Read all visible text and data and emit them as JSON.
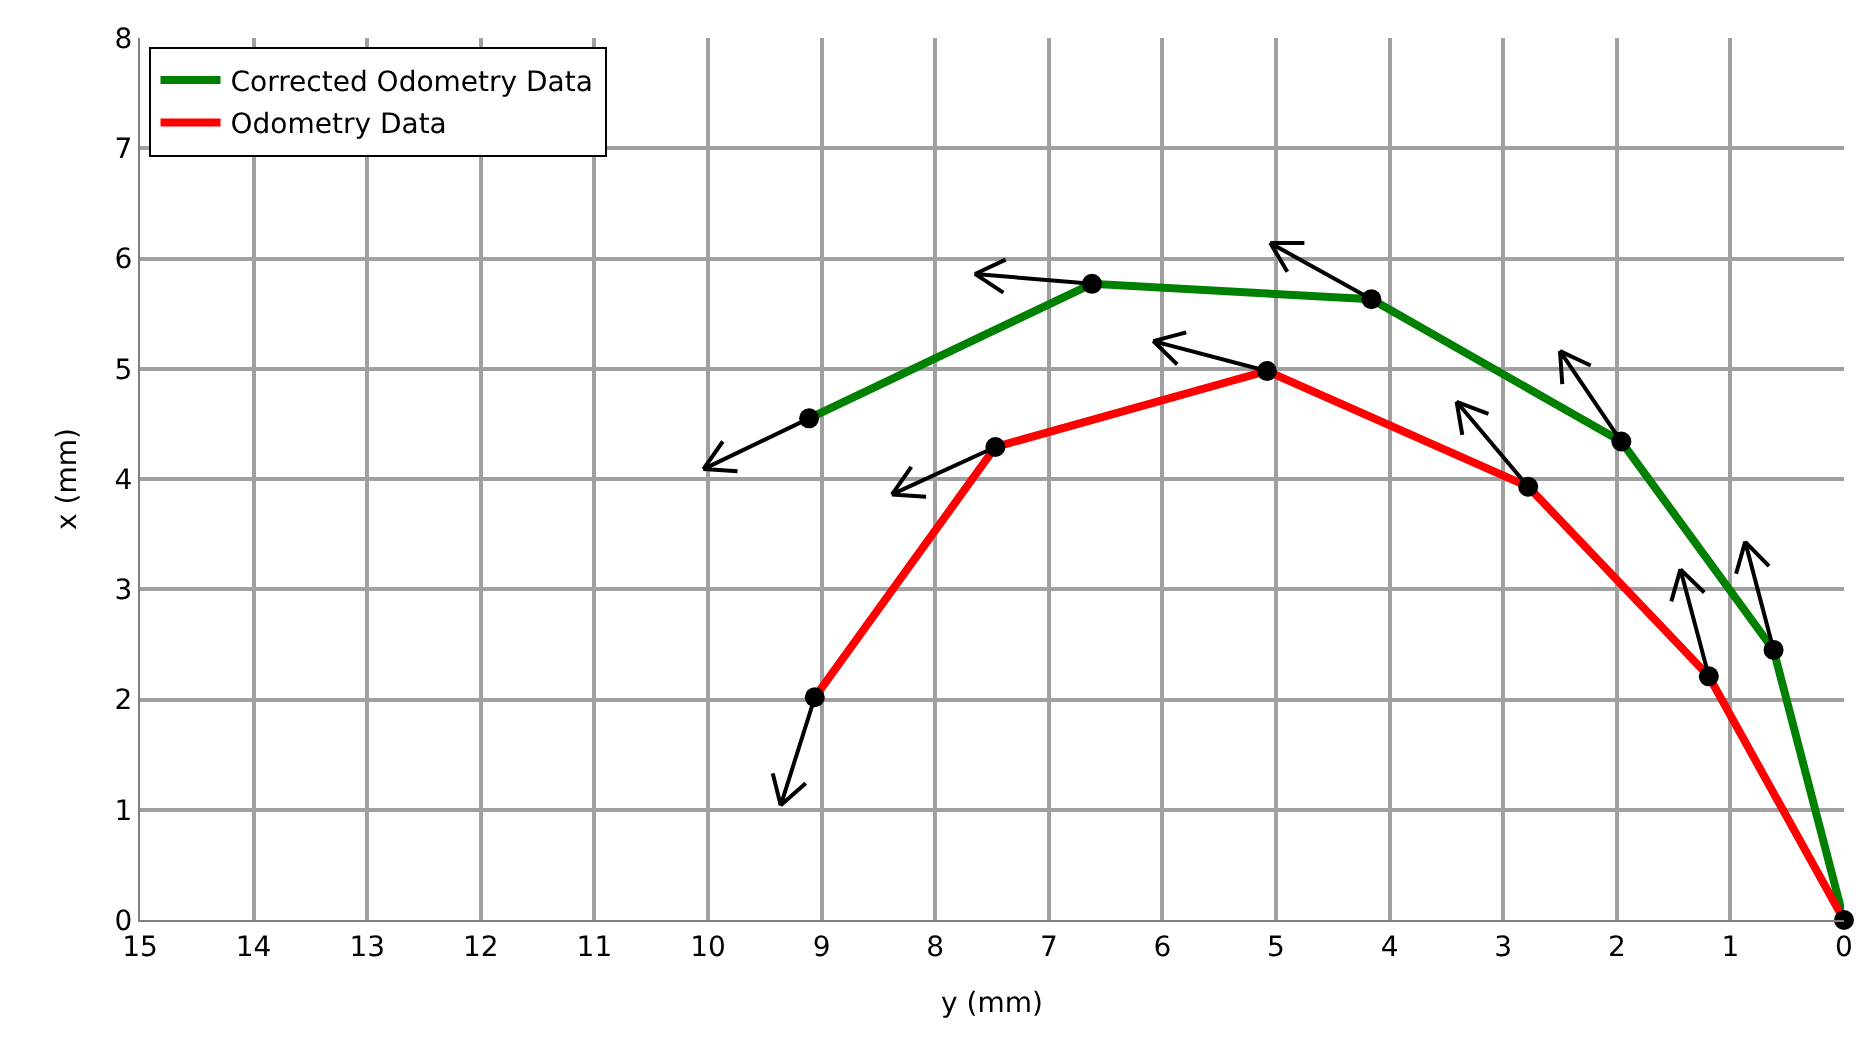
{
  "chart_data": {
    "type": "line",
    "xlabel": "y (mm)",
    "ylabel": "x (mm)",
    "xlim": [
      15,
      0
    ],
    "ylim": [
      0,
      8
    ],
    "xticks": [
      15,
      14,
      13,
      12,
      11,
      10,
      9,
      8,
      7,
      6,
      5,
      4,
      3,
      2,
      1,
      0
    ],
    "yticks": [
      0,
      1,
      2,
      3,
      4,
      5,
      6,
      7,
      8
    ],
    "grid": true,
    "legend": "top left",
    "line_style": "solid",
    "series": [
      {
        "name": "Corrected Odometry Data",
        "color": "#008000",
        "x": [
          0,
          0.62,
          1.96,
          4.16,
          6.62,
          9.11
        ],
        "values": [
          0,
          2.45,
          4.34,
          5.63,
          5.77,
          4.55
        ]
      },
      {
        "name": "Odometry Data",
        "color": "#ff0000",
        "x": [
          0,
          1.19,
          2.78,
          5.08,
          7.47,
          9.06
        ],
        "values": [
          0,
          2.21,
          3.93,
          4.98,
          4.29,
          2.02
        ]
      },
      {
        "type": "line",
        "color": "#000000",
        "x": [
          0.62,
          0.87,
          0.95,
          null,
          0.87,
          0.66,
          null,
          1.96,
          2.5,
          2.48,
          null,
          2.5,
          2.23,
          null,
          4.16,
          5.05,
          4.9,
          null,
          5.05,
          4.75,
          null,
          6.62,
          7.65,
          7.4,
          null,
          7.65,
          7.38,
          null,
          9.11,
          10.04,
          9.74,
          null,
          10.04,
          9.87,
          null,
          1.19,
          1.44,
          1.52,
          null,
          1.44,
          1.23,
          null,
          2.78,
          3.41,
          3.36,
          null,
          3.41,
          3.13,
          null,
          5.08,
          6.08,
          5.87,
          null,
          6.08,
          5.79,
          null,
          7.47,
          8.38,
          8.08,
          null,
          8.38,
          8.21,
          null,
          9.06,
          9.36,
          9.14,
          null,
          9.36,
          9.43
        ],
        "values": [
          2.45,
          3.43,
          3.14,
          null,
          3.43,
          3.21,
          null,
          4.34,
          5.16,
          4.86,
          null,
          5.16,
          5.03,
          null,
          5.63,
          6.14,
          5.88,
          null,
          6.14,
          6.14,
          null,
          5.77,
          5.86,
          5.69,
          null,
          5.86,
          5.99,
          null,
          4.55,
          4.09,
          4.07,
          null,
          4.09,
          4.34,
          null,
          2.21,
          3.18,
          2.89,
          null,
          3.18,
          2.97,
          null,
          3.93,
          4.7,
          4.4,
          null,
          4.7,
          4.59,
          null,
          4.98,
          5.25,
          5.04,
          null,
          5.25,
          5.33,
          null,
          4.29,
          3.86,
          3.84,
          null,
          3.86,
          4.11,
          null,
          2.02,
          1.04,
          1.24,
          null,
          1.04,
          1.33
        ]
      },
      {
        "type": "scatter",
        "color": "#000000",
        "marker": "circle",
        "x": [
          0,
          0.62,
          1.96,
          4.16,
          6.62,
          9.11,
          1.19,
          2.78,
          5.08,
          7.47,
          9.06
        ],
        "values": [
          0,
          2.45,
          4.34,
          5.63,
          5.77,
          4.55,
          2.21,
          3.93,
          4.98,
          4.29,
          2.02
        ]
      }
    ]
  }
}
